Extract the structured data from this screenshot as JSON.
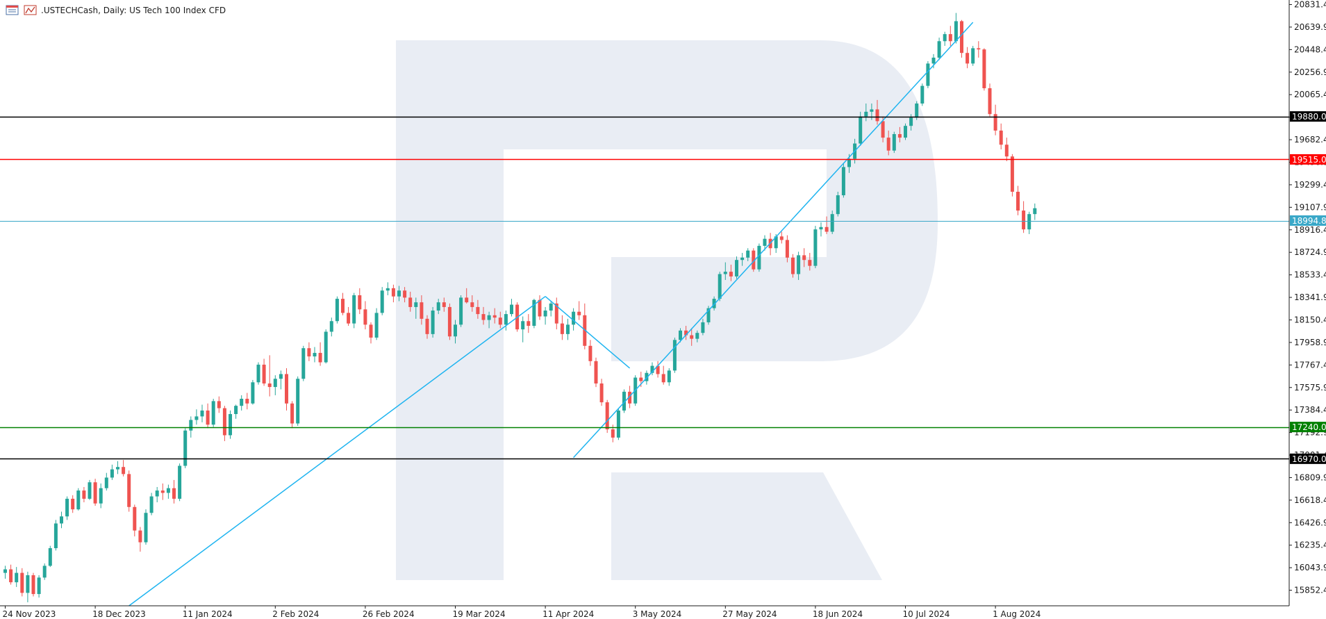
{
  "header": {
    "symbol_text": ".USTECHCash, Daily:  US Tech 100 Index CFD",
    "icons": [
      "chart-window-icon",
      "chart-type-icon"
    ]
  },
  "colors": {
    "bull": "#26a69a",
    "bear": "#ef5350",
    "trendline": "#1eb4f0",
    "bid_line": "#3aa8c8",
    "level_black": "#000000",
    "level_red": "#ff0000",
    "level_green": "#008000",
    "watermark": "#e9edf4"
  },
  "chart_data": {
    "type": "candlestick",
    "title": ".USTECHCash, Daily:  US Tech 100 Index CFD",
    "ylim": [
      15720,
      20870
    ],
    "y_ticks": [
      "20831.4",
      "20639.9",
      "20448.4",
      "20256.9",
      "20065.4",
      "19873.9",
      "19682.4",
      "19490.9",
      "19299.4",
      "19107.9",
      "18916.4",
      "18724.9",
      "18533.4",
      "18341.9",
      "18150.4",
      "17958.9",
      "17767.4",
      "17575.9",
      "17384.4",
      "17192.9",
      "17001.4",
      "16809.9",
      "16618.4",
      "16426.9",
      "16235.4",
      "16043.9",
      "15852.4"
    ],
    "x_ticks": [
      {
        "label": "24 Nov 2023",
        "index": 0
      },
      {
        "label": "18 Dec 2023",
        "index": 16
      },
      {
        "label": "11 Jan 2024",
        "index": 32
      },
      {
        "label": "2 Feb 2024",
        "index": 48
      },
      {
        "label": "26 Feb 2024",
        "index": 64
      },
      {
        "label": "19 Mar 2024",
        "index": 80
      },
      {
        "label": "11 Apr 2024",
        "index": 96
      },
      {
        "label": "3 May 2024",
        "index": 112
      },
      {
        "label": "27 May 2024",
        "index": 128
      },
      {
        "label": "18 Jun 2024",
        "index": 144
      },
      {
        "label": "10 Jul 2024",
        "index": 160
      },
      {
        "label": "1 Aug 2024",
        "index": 176
      }
    ],
    "levels": [
      {
        "value": 19880.0,
        "label": "19880.0",
        "color": "#000000"
      },
      {
        "value": 19515.0,
        "label": "19515.0",
        "color": "#ff0000"
      },
      {
        "value": 17240.0,
        "label": "17240.0",
        "color": "#008000"
      },
      {
        "value": 16970.0,
        "label": "16970.0",
        "color": "#000000"
      }
    ],
    "bid": {
      "value": 18994.8,
      "label": "18994.8"
    },
    "trendlines": [
      {
        "from": {
          "index": 22,
          "value": 15720
        },
        "to": {
          "index": 96,
          "value": 18350
        }
      },
      {
        "from": {
          "index": 96,
          "value": 18350
        },
        "to": {
          "index": 111,
          "value": 17740
        }
      },
      {
        "from": {
          "index": 101,
          "value": 16980
        },
        "to": {
          "index": 172,
          "value": 20680
        }
      }
    ],
    "candles": [
      [
        16000,
        16060,
        15950,
        16030
      ],
      [
        16030,
        16070,
        15900,
        15920
      ],
      [
        15920,
        16050,
        15880,
        16000
      ],
      [
        16000,
        16040,
        15800,
        15830
      ],
      [
        15830,
        16010,
        15750,
        15980
      ],
      [
        15980,
        16000,
        15800,
        15820
      ],
      [
        15820,
        15980,
        15790,
        15960
      ],
      [
        15960,
        16080,
        15940,
        16060
      ],
      [
        16060,
        16230,
        16050,
        16210
      ],
      [
        16210,
        16450,
        16190,
        16420
      ],
      [
        16420,
        16520,
        16380,
        16480
      ],
      [
        16480,
        16650,
        16450,
        16630
      ],
      [
        16630,
        16660,
        16510,
        16540
      ],
      [
        16540,
        16720,
        16530,
        16700
      ],
      [
        16700,
        16730,
        16600,
        16630
      ],
      [
        16630,
        16790,
        16620,
        16770
      ],
      [
        16770,
        16800,
        16570,
        16590
      ],
      [
        16590,
        16760,
        16550,
        16720
      ],
      [
        16720,
        16850,
        16700,
        16810
      ],
      [
        16810,
        16920,
        16790,
        16880
      ],
      [
        16880,
        16950,
        16840,
        16900
      ],
      [
        16900,
        16960,
        16820,
        16840
      ],
      [
        16840,
        16870,
        16520,
        16560
      ],
      [
        16560,
        16580,
        16310,
        16360
      ],
      [
        16360,
        16390,
        16180,
        16260
      ],
      [
        16260,
        16540,
        16240,
        16510
      ],
      [
        16510,
        16680,
        16490,
        16650
      ],
      [
        16650,
        16730,
        16600,
        16700
      ],
      [
        16700,
        16760,
        16620,
        16680
      ],
      [
        16680,
        16750,
        16630,
        16720
      ],
      [
        16720,
        16790,
        16590,
        16630
      ],
      [
        16630,
        16930,
        16610,
        16910
      ],
      [
        16910,
        17230,
        16890,
        17210
      ],
      [
        17210,
        17330,
        17150,
        17300
      ],
      [
        17300,
        17390,
        17260,
        17330
      ],
      [
        17330,
        17430,
        17280,
        17380
      ],
      [
        17380,
        17440,
        17230,
        17260
      ],
      [
        17260,
        17480,
        17240,
        17460
      ],
      [
        17460,
        17500,
        17360,
        17400
      ],
      [
        17400,
        17420,
        17120,
        17170
      ],
      [
        17170,
        17380,
        17140,
        17350
      ],
      [
        17350,
        17430,
        17310,
        17420
      ],
      [
        17420,
        17510,
        17380,
        17480
      ],
      [
        17480,
        17530,
        17390,
        17440
      ],
      [
        17440,
        17640,
        17430,
        17620
      ],
      [
        17620,
        17790,
        17600,
        17770
      ],
      [
        17770,
        17820,
        17590,
        17610
      ],
      [
        17610,
        17850,
        17500,
        17580
      ],
      [
        17580,
        17680,
        17510,
        17650
      ],
      [
        17650,
        17720,
        17560,
        17690
      ],
      [
        17690,
        17740,
        17380,
        17440
      ],
      [
        17440,
        17460,
        17230,
        17270
      ],
      [
        17270,
        17670,
        17250,
        17650
      ],
      [
        17650,
        17930,
        17630,
        17910
      ],
      [
        17910,
        17960,
        17800,
        17840
      ],
      [
        17840,
        17920,
        17790,
        17870
      ],
      [
        17870,
        17960,
        17760,
        17790
      ],
      [
        17790,
        18070,
        17780,
        18050
      ],
      [
        18050,
        18170,
        18010,
        18140
      ],
      [
        18140,
        18350,
        18120,
        18330
      ],
      [
        18330,
        18380,
        18190,
        18210
      ],
      [
        18210,
        18260,
        18100,
        18120
      ],
      [
        18120,
        18380,
        18080,
        18360
      ],
      [
        18360,
        18420,
        18200,
        18240
      ],
      [
        18240,
        18310,
        18070,
        18110
      ],
      [
        18110,
        18130,
        17950,
        18000
      ],
      [
        18000,
        18250,
        17980,
        18210
      ],
      [
        18210,
        18430,
        18190,
        18400
      ],
      [
        18400,
        18470,
        18360,
        18420
      ],
      [
        18420,
        18450,
        18300,
        18350
      ],
      [
        18350,
        18440,
        18310,
        18400
      ],
      [
        18400,
        18430,
        18300,
        18340
      ],
      [
        18340,
        18390,
        18220,
        18260
      ],
      [
        18260,
        18340,
        18160,
        18300
      ],
      [
        18300,
        18360,
        18110,
        18160
      ],
      [
        18160,
        18190,
        17990,
        18030
      ],
      [
        18030,
        18260,
        18000,
        18230
      ],
      [
        18230,
        18330,
        18200,
        18300
      ],
      [
        18300,
        18340,
        18220,
        18260
      ],
      [
        18260,
        18290,
        17980,
        18010
      ],
      [
        18010,
        18150,
        17950,
        18110
      ],
      [
        18110,
        18360,
        18090,
        18340
      ],
      [
        18340,
        18420,
        18290,
        18300
      ],
      [
        18300,
        18360,
        18220,
        18260
      ],
      [
        18260,
        18320,
        18160,
        18200
      ],
      [
        18200,
        18260,
        18110,
        18150
      ],
      [
        18150,
        18220,
        18080,
        18190
      ],
      [
        18190,
        18250,
        18120,
        18170
      ],
      [
        18170,
        18220,
        18080,
        18110
      ],
      [
        18110,
        18230,
        18060,
        18200
      ],
      [
        18200,
        18330,
        18180,
        18280
      ],
      [
        18280,
        18300,
        18050,
        18070
      ],
      [
        18070,
        18180,
        17960,
        18140
      ],
      [
        18140,
        18200,
        18040,
        18100
      ],
      [
        18100,
        18330,
        18080,
        18320
      ],
      [
        18320,
        18360,
        18150,
        18180
      ],
      [
        18180,
        18260,
        18110,
        18230
      ],
      [
        18230,
        18310,
        18180,
        18290
      ],
      [
        18290,
        18340,
        18070,
        18120
      ],
      [
        18120,
        18190,
        17980,
        18030
      ],
      [
        18030,
        18160,
        17980,
        18110
      ],
      [
        18110,
        18250,
        18060,
        18220
      ],
      [
        18220,
        18310,
        18150,
        18190
      ],
      [
        18190,
        18290,
        17900,
        17930
      ],
      [
        17930,
        17980,
        17760,
        17800
      ],
      [
        17800,
        17830,
        17580,
        17610
      ],
      [
        17610,
        17650,
        17420,
        17450
      ],
      [
        17450,
        17470,
        17190,
        17220
      ],
      [
        17220,
        17260,
        17110,
        17150
      ],
      [
        17150,
        17400,
        17130,
        17380
      ],
      [
        17380,
        17560,
        17360,
        17540
      ],
      [
        17540,
        17590,
        17400,
        17440
      ],
      [
        17440,
        17680,
        17420,
        17660
      ],
      [
        17660,
        17710,
        17580,
        17630
      ],
      [
        17630,
        17720,
        17600,
        17700
      ],
      [
        17700,
        17790,
        17680,
        17760
      ],
      [
        17760,
        17800,
        17660,
        17690
      ],
      [
        17690,
        17760,
        17600,
        17620
      ],
      [
        17620,
        17740,
        17590,
        17720
      ],
      [
        17720,
        18000,
        17700,
        17980
      ],
      [
        17980,
        18080,
        17960,
        18060
      ],
      [
        18060,
        18100,
        17980,
        18020
      ],
      [
        18020,
        18080,
        17930,
        17990
      ],
      [
        17990,
        18060,
        17960,
        18040
      ],
      [
        18040,
        18160,
        18020,
        18130
      ],
      [
        18130,
        18270,
        18110,
        18250
      ],
      [
        18250,
        18350,
        18230,
        18330
      ],
      [
        18330,
        18560,
        18310,
        18540
      ],
      [
        18540,
        18640,
        18490,
        18560
      ],
      [
        18560,
        18620,
        18480,
        18520
      ],
      [
        18520,
        18690,
        18500,
        18660
      ],
      [
        18660,
        18720,
        18610,
        18680
      ],
      [
        18680,
        18760,
        18650,
        18740
      ],
      [
        18740,
        18760,
        18560,
        18580
      ],
      [
        18580,
        18800,
        18560,
        18780
      ],
      [
        18780,
        18870,
        18740,
        18840
      ],
      [
        18840,
        18890,
        18700,
        18760
      ],
      [
        18760,
        18880,
        18720,
        18860
      ],
      [
        18860,
        18900,
        18800,
        18830
      ],
      [
        18830,
        18870,
        18640,
        18680
      ],
      [
        18680,
        18710,
        18510,
        18540
      ],
      [
        18540,
        18730,
        18490,
        18700
      ],
      [
        18700,
        18760,
        18600,
        18660
      ],
      [
        18660,
        18720,
        18570,
        18610
      ],
      [
        18610,
        18950,
        18590,
        18920
      ],
      [
        18920,
        18980,
        18860,
        18940
      ],
      [
        18940,
        19030,
        18880,
        18900
      ],
      [
        18900,
        19080,
        18880,
        19050
      ],
      [
        19050,
        19240,
        19030,
        19210
      ],
      [
        19210,
        19480,
        19190,
        19450
      ],
      [
        19450,
        19560,
        19400,
        19520
      ],
      [
        19520,
        19690,
        19480,
        19650
      ],
      [
        19650,
        19920,
        19630,
        19880
      ],
      [
        19880,
        19990,
        19840,
        19920
      ],
      [
        19920,
        19990,
        19850,
        19940
      ],
      [
        19940,
        20020,
        19810,
        19840
      ],
      [
        19840,
        19880,
        19660,
        19700
      ],
      [
        19700,
        19760,
        19550,
        19590
      ],
      [
        19590,
        19750,
        19570,
        19730
      ],
      [
        19730,
        19790,
        19660,
        19700
      ],
      [
        19700,
        19820,
        19680,
        19800
      ],
      [
        19800,
        19900,
        19760,
        19870
      ],
      [
        19870,
        20010,
        19850,
        19990
      ],
      [
        19990,
        20160,
        19970,
        20140
      ],
      [
        20140,
        20350,
        20120,
        20330
      ],
      [
        20330,
        20410,
        20290,
        20380
      ],
      [
        20380,
        20550,
        20360,
        20520
      ],
      [
        20520,
        20600,
        20480,
        20580
      ],
      [
        20580,
        20650,
        20480,
        20520
      ],
      [
        20520,
        20760,
        20500,
        20690
      ],
      [
        20690,
        20700,
        20380,
        20420
      ],
      [
        20420,
        20470,
        20290,
        20330
      ],
      [
        20330,
        20480,
        20310,
        20460
      ],
      [
        20460,
        20520,
        20380,
        20450
      ],
      [
        20450,
        20460,
        20100,
        20120
      ],
      [
        20120,
        20160,
        19880,
        19900
      ],
      [
        19900,
        19980,
        19720,
        19760
      ],
      [
        19760,
        19820,
        19600,
        19640
      ],
      [
        19640,
        19700,
        19500,
        19540
      ],
      [
        19540,
        19560,
        19200,
        19240
      ],
      [
        19240,
        19290,
        19040,
        19080
      ],
      [
        19080,
        19160,
        18890,
        18920
      ],
      [
        18920,
        19070,
        18880,
        19050
      ],
      [
        19050,
        19140,
        19000,
        19100
      ]
    ]
  }
}
